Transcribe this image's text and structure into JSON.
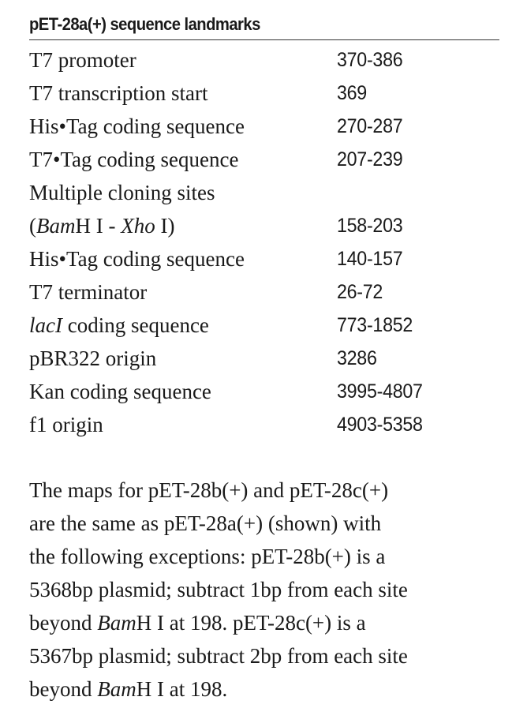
{
  "title": "pET-28a(+) sequence landmarks",
  "landmarks": [
    {
      "label": "T7 promoter",
      "value": "370-386"
    },
    {
      "label": "T7 transcription start",
      "value": "369"
    },
    {
      "label": "His•Tag coding sequence",
      "value": "270-287"
    },
    {
      "label": "T7•Tag coding sequence",
      "value": "207-239"
    },
    {
      "label": "Multiple cloning sites",
      "value": ""
    },
    {
      "label_parts": [
        "(",
        "Bam",
        "H I - ",
        "Xho",
        " I)"
      ],
      "value": "158-203"
    },
    {
      "label": "His•Tag coding sequence",
      "value": "140-157"
    },
    {
      "label": "T7 terminator",
      "value": "26-72"
    },
    {
      "label_parts": [
        "lacI",
        " coding sequence"
      ],
      "value": "773-1852"
    },
    {
      "label": "pBR322 origin",
      "value": "3286"
    },
    {
      "label": "Kan coding sequence",
      "value": "3995-4807"
    },
    {
      "label": "f1 origin",
      "value": "4903-5358"
    }
  ],
  "note": {
    "line1": "The maps for pET-28b(+) and pET-28c(+)",
    "line2": "are the same as pET-28a(+) (shown) with",
    "line3": "the following exceptions: pET-28b(+) is a",
    "line4": "5368bp plasmid; subtract 1bp from each site",
    "line5_pre": "beyond ",
    "line5_ital": "Bam",
    "line5_post": "H I at 198. pET-28c(+) is a",
    "line6": "5367bp plasmid; subtract 2bp from each site",
    "line7_pre": "beyond ",
    "line7_ital": "Bam",
    "line7_post": "H I at 198."
  }
}
